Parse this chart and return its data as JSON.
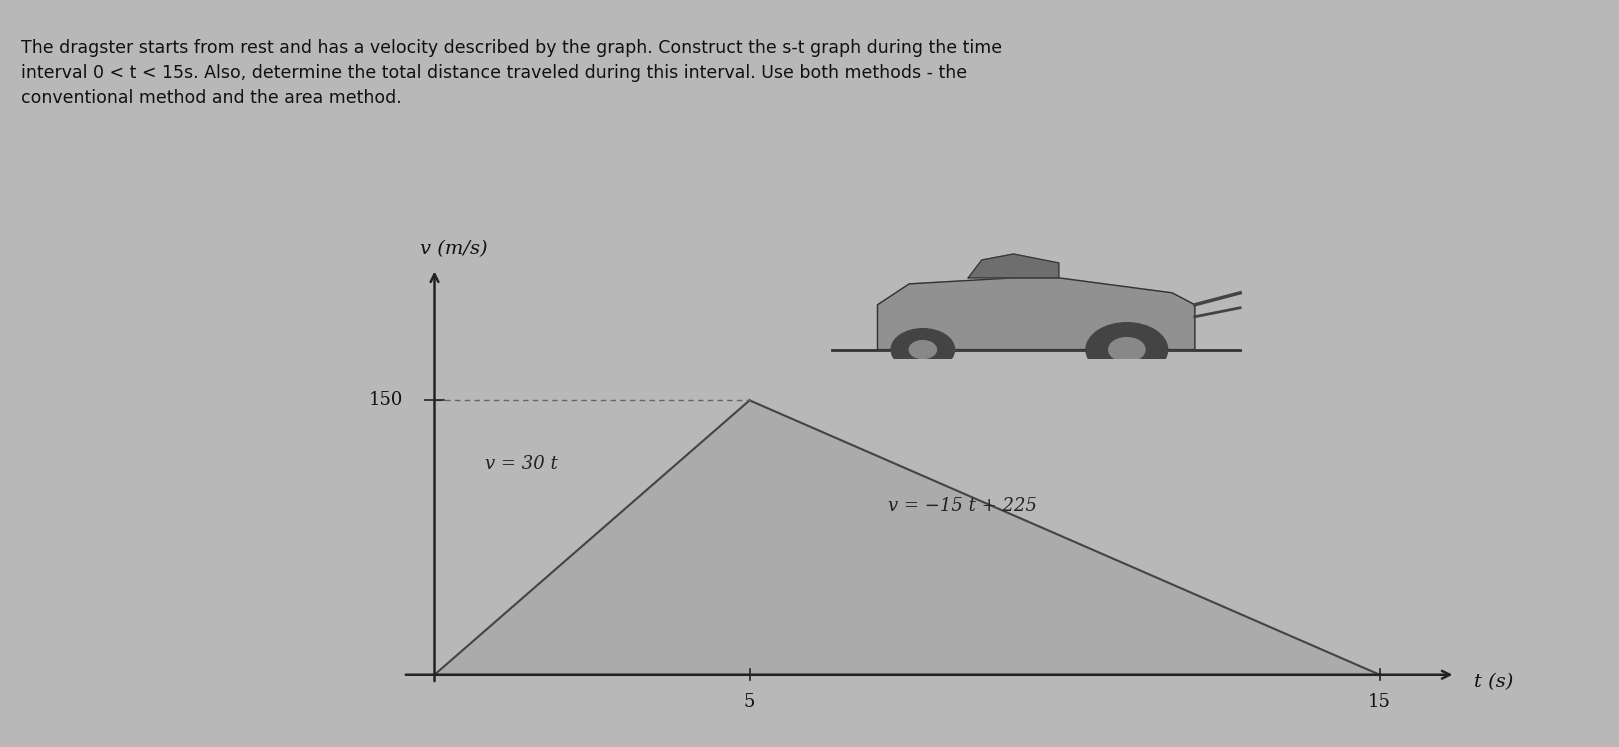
{
  "background_color": "#b8b8b8",
  "header_bg": "#c8c8c8",
  "header_text_line1": "The dragster starts from rest and has a velocity described by the graph. Construct the s-t graph during the time",
  "header_text_line2": "interval 0 < t < 15s. Also, determine the total distance traveled during this interval. Use both methods - the",
  "header_text_line3": "conventional method and the area method.",
  "header_fontsize": 12.5,
  "graph_bg": "#d8d8d8",
  "graph_inner_bg": "#f0f0f0",
  "ylabel": "v (m/s)",
  "xlabel": "t (s)",
  "xlim": [
    -1.5,
    17
  ],
  "ylim": [
    -15,
    230
  ],
  "xticks": [
    5,
    15
  ],
  "yticks": [
    150
  ],
  "y_150_label": "150",
  "t_break": 5,
  "t_end": 15,
  "v_peak": 150,
  "eq1": "v = 30 t",
  "eq2": "v = −15 t + 225",
  "triangle_fill_color": "#aaaaaa",
  "triangle_edge_color": "#444444",
  "axis_color": "#222222",
  "tick_label_fontsize": 13,
  "eq_fontsize": 13,
  "ylabel_fontsize": 14,
  "xlabel_fontsize": 14,
  "dashed_line_color": "#666666",
  "border_color": "#444444"
}
